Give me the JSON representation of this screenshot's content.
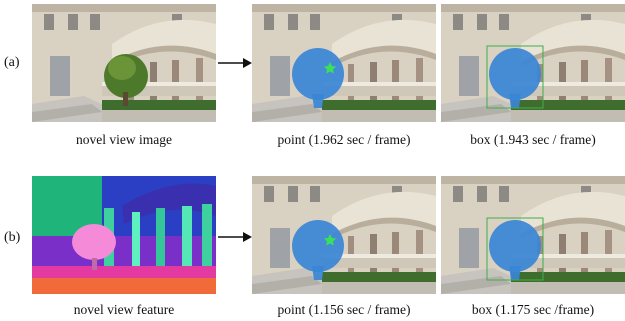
{
  "figure": {
    "rows": [
      {
        "label": "(a)",
        "captions": [
          "novel view image",
          "point (1.962 sec / frame)",
          "box (1.943 sec / frame)"
        ]
      },
      {
        "label": "(b)",
        "captions": [
          "novel view feature",
          "point (1.156 sec / frame)",
          "box (1.175 sec /frame)"
        ]
      }
    ],
    "colors": {
      "mask_blue": "#3a86d6",
      "point_marker": "#39e05a",
      "box_outline": "#3fae4a"
    }
  }
}
